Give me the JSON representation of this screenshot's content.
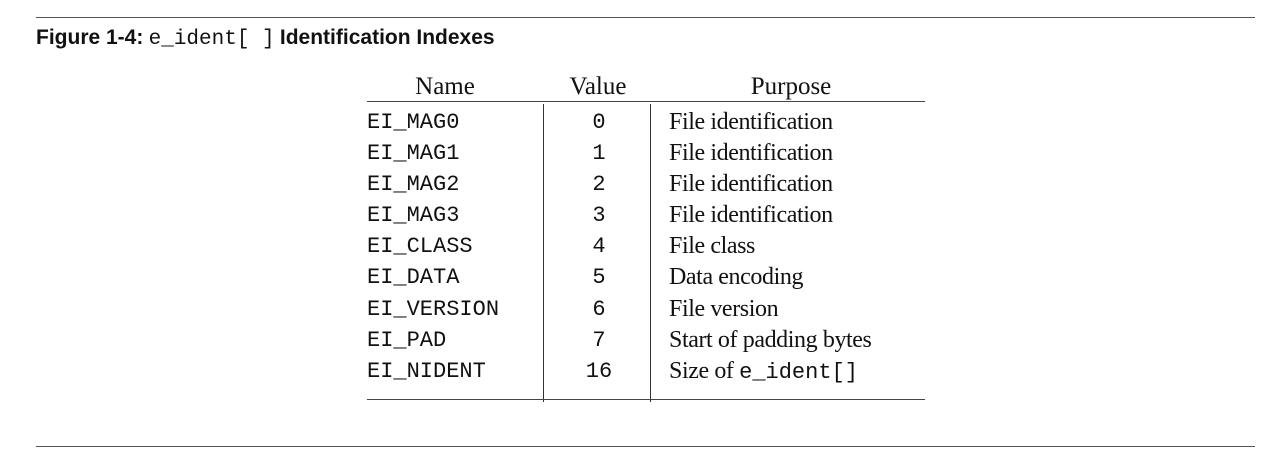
{
  "caption": {
    "label": "Figure 1-4:",
    "code": "e_ident[ ]",
    "title": "Identification Indexes"
  },
  "table": {
    "headers": {
      "name": "Name",
      "value": "Value",
      "purpose": "Purpose"
    },
    "rows": [
      {
        "name": "EI_MAG0",
        "value": "0",
        "purpose": "File identification"
      },
      {
        "name": "EI_MAG1",
        "value": "1",
        "purpose": "File identification"
      },
      {
        "name": "EI_MAG2",
        "value": "2",
        "purpose": "File identification"
      },
      {
        "name": "EI_MAG3",
        "value": "3",
        "purpose": "File identification"
      },
      {
        "name": "EI_CLASS",
        "value": "4",
        "purpose": "File class"
      },
      {
        "name": "EI_DATA",
        "value": "5",
        "purpose": "Data encoding"
      },
      {
        "name": "EI_VERSION",
        "value": "6",
        "purpose": "File version"
      },
      {
        "name": "EI_PAD",
        "value": "7",
        "purpose": "Start of padding bytes"
      },
      {
        "name": "EI_NIDENT",
        "value": "16",
        "purpose": "Size of",
        "purpose_code": "e_ident[]"
      }
    ]
  }
}
